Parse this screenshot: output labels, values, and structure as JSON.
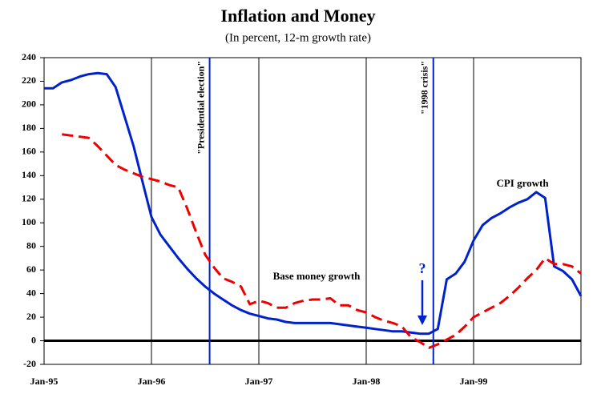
{
  "chart_data": {
    "type": "line",
    "title": "Inflation and Money",
    "subtitle": "(In percent, 12-m growth rate)",
    "categories": [
      "Jan-95",
      null,
      null,
      null,
      null,
      null,
      null,
      null,
      null,
      null,
      null,
      null,
      "Jan-96",
      null,
      null,
      null,
      null,
      null,
      null,
      null,
      null,
      null,
      null,
      null,
      "Jan-97",
      null,
      null,
      null,
      null,
      null,
      null,
      null,
      null,
      null,
      null,
      null,
      "Jan-98",
      null,
      null,
      null,
      null,
      null,
      null,
      null,
      null,
      null,
      null,
      null,
      "Jan-99",
      null,
      null,
      null,
      null,
      null,
      null,
      null,
      null,
      null,
      null,
      null,
      null
    ],
    "series": [
      {
        "name": "CPI growth",
        "color": "#0022cc",
        "dash": false,
        "values": [
          214,
          214,
          219,
          221,
          224,
          226,
          227,
          226,
          215,
          190,
          165,
          135,
          105,
          90,
          80,
          70,
          61,
          53,
          46,
          40,
          35,
          30,
          26,
          23,
          21,
          19,
          18,
          16,
          15,
          15,
          15,
          15,
          15,
          14,
          13,
          12,
          11,
          10,
          9,
          8,
          8,
          7,
          6,
          6,
          10,
          52,
          57,
          67,
          85,
          98,
          104,
          108,
          113,
          117,
          120,
          126,
          121,
          63,
          59,
          52,
          38
        ]
      },
      {
        "name": "Base money growth",
        "color": "#ee0000",
        "dash": true,
        "values": [
          null,
          null,
          175,
          174,
          173,
          172,
          165,
          157,
          149,
          145,
          142,
          139,
          137,
          135,
          132,
          130,
          112,
          92,
          73,
          62,
          53,
          50,
          46,
          31,
          34,
          32,
          28,
          28,
          32,
          34,
          35,
          35,
          36,
          30,
          30,
          26,
          24,
          20,
          17,
          15,
          12,
          3,
          -1,
          -6,
          -3,
          1,
          5,
          12,
          20,
          24,
          28,
          32,
          38,
          45,
          53,
          60,
          70,
          65,
          65,
          63,
          57
        ]
      }
    ],
    "events": [
      {
        "label": "\"Presidential election\"",
        "x": 18.5
      },
      {
        "label": "\"1998 crisis\"",
        "x": 43.5
      }
    ],
    "annotation": "?",
    "ylim": [
      -20,
      240
    ],
    "yticks": [
      -20,
      0,
      20,
      40,
      60,
      80,
      100,
      120,
      140,
      160,
      180,
      200,
      220,
      240
    ],
    "grid": true
  }
}
